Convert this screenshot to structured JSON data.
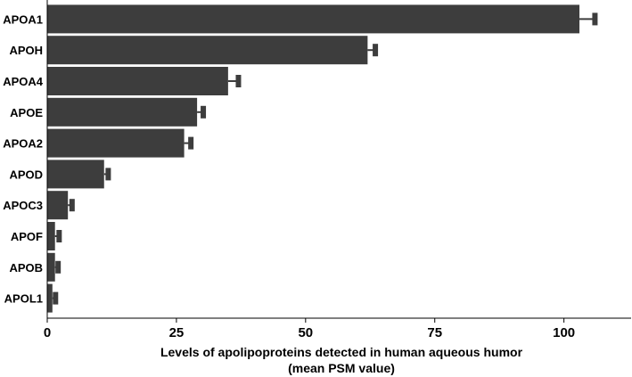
{
  "chart_data": {
    "type": "bar",
    "orientation": "horizontal",
    "categories": [
      "APOA1",
      "APOH",
      "APOA4",
      "APOE",
      "APOA2",
      "APOD",
      "APOC3",
      "APOF",
      "APOB",
      "APOL1"
    ],
    "values": [
      103,
      62,
      35,
      29,
      26.5,
      11,
      4,
      1.5,
      1.5,
      1
    ],
    "errors": [
      3,
      1.5,
      2,
      1.2,
      1.3,
      0.8,
      0.8,
      0.8,
      0.6,
      0.6
    ],
    "xlabel": "Levels of apolipoproteins detected in human aqueous humor",
    "xlabel_line2": "(mean PSM value)",
    "ylabel": "",
    "xlim": [
      0,
      113
    ],
    "xticks": [
      0,
      25,
      50,
      75,
      100
    ],
    "grid": false,
    "legend": "none",
    "bar_color": "#3d3d3d"
  }
}
